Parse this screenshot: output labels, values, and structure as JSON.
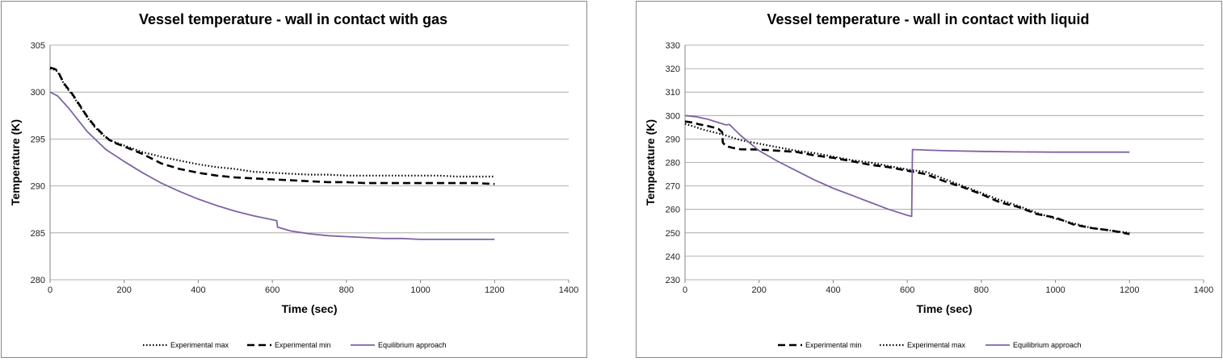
{
  "chart_data": [
    {
      "type": "line",
      "title": "Vessel temperature - wall in contact with gas",
      "xlabel": "Time (sec)",
      "ylabel": "Temperature (K)",
      "xlim": [
        0,
        1400
      ],
      "ylim": [
        280,
        305
      ],
      "xticks": [
        0,
        200,
        400,
        600,
        800,
        1000,
        1200,
        1400
      ],
      "yticks": [
        280,
        285,
        290,
        295,
        300,
        305
      ],
      "grid": "horizontal",
      "legend_position": "bottom",
      "series": [
        {
          "name": "Experimental max",
          "style": "dotted",
          "color": "#000000",
          "x": [
            0,
            10,
            20,
            30,
            40,
            50,
            60,
            80,
            100,
            120,
            140,
            160,
            180,
            200,
            250,
            300,
            350,
            400,
            450,
            500,
            550,
            600,
            650,
            700,
            750,
            800,
            850,
            900,
            950,
            1000,
            1050,
            1100,
            1150,
            1200
          ],
          "y": [
            302.5,
            302.4,
            302.2,
            301.4,
            300.7,
            300.2,
            299.7,
            298.5,
            297.3,
            296.3,
            295.5,
            294.9,
            294.6,
            294.3,
            293.6,
            293.1,
            292.7,
            292.3,
            292.0,
            291.8,
            291.5,
            291.4,
            291.3,
            291.2,
            291.2,
            291.1,
            291.1,
            291.1,
            291.1,
            291.1,
            291.1,
            291.0,
            291.0,
            291.0
          ]
        },
        {
          "name": "Experimental min",
          "style": "dashed",
          "color": "#000000",
          "x": [
            0,
            10,
            20,
            30,
            40,
            50,
            60,
            80,
            100,
            120,
            140,
            160,
            180,
            200,
            250,
            300,
            350,
            400,
            450,
            500,
            550,
            600,
            650,
            700,
            750,
            800,
            850,
            900,
            950,
            1000,
            1050,
            1100,
            1150,
            1200
          ],
          "y": [
            302.6,
            302.5,
            302.3,
            301.5,
            300.8,
            300.3,
            299.8,
            298.6,
            297.4,
            296.4,
            295.6,
            294.9,
            294.5,
            294.2,
            293.4,
            292.4,
            291.8,
            291.4,
            291.1,
            290.9,
            290.8,
            290.7,
            290.6,
            290.5,
            290.4,
            290.4,
            290.3,
            290.3,
            290.3,
            290.3,
            290.3,
            290.3,
            290.3,
            290.2
          ]
        },
        {
          "name": "Equilibrium approach",
          "style": "solid",
          "color": "#7f63a3",
          "x": [
            0,
            20,
            50,
            100,
            150,
            200,
            250,
            300,
            350,
            400,
            450,
            500,
            550,
            600,
            612,
            614,
            650,
            700,
            750,
            800,
            850,
            900,
            950,
            1000,
            1050,
            1100,
            1150,
            1200
          ],
          "y": [
            300.0,
            299.6,
            298.3,
            295.8,
            293.9,
            292.6,
            291.4,
            290.3,
            289.4,
            288.6,
            287.9,
            287.3,
            286.8,
            286.4,
            286.3,
            285.6,
            285.2,
            284.9,
            284.7,
            284.6,
            284.5,
            284.4,
            284.4,
            284.3,
            284.3,
            284.3,
            284.3,
            284.3
          ]
        }
      ]
    },
    {
      "type": "line",
      "title": "Vessel temperature - wall in contact with liquid",
      "xlabel": "Time (sec)",
      "ylabel": "Temperature (K)",
      "xlim": [
        0,
        1400
      ],
      "ylim": [
        230,
        330
      ],
      "xticks": [
        0,
        200,
        400,
        600,
        800,
        1000,
        1200,
        1400
      ],
      "yticks": [
        230,
        240,
        250,
        260,
        270,
        280,
        290,
        300,
        310,
        320,
        330
      ],
      "grid": "horizontal",
      "legend_position": "bottom",
      "series": [
        {
          "name": "Experimental min",
          "style": "dashed",
          "color": "#000000",
          "x": [
            0,
            20,
            40,
            60,
            80,
            90,
            100,
            102,
            110,
            130,
            150,
            200,
            250,
            300,
            350,
            400,
            450,
            500,
            550,
            600,
            650,
            700,
            750,
            800,
            850,
            900,
            950,
            1000,
            1050,
            1100,
            1150,
            1200
          ],
          "y": [
            297.5,
            297.0,
            296.2,
            295.6,
            294.8,
            294.3,
            293.0,
            288.5,
            287.0,
            286.2,
            285.6,
            285.5,
            285.0,
            284.5,
            283.0,
            282.0,
            280.5,
            279.0,
            278.0,
            276.5,
            275.0,
            272.0,
            269.5,
            266.5,
            263.0,
            261.0,
            258.0,
            256.5,
            253.5,
            252.0,
            251.0,
            249.5
          ]
        },
        {
          "name": "Experimental max",
          "style": "dotted",
          "color": "#000000",
          "x": [
            0,
            50,
            100,
            150,
            200,
            250,
            300,
            350,
            400,
            450,
            500,
            550,
            600,
            650,
            700,
            750,
            800,
            850,
            900,
            950,
            1000,
            1050,
            1100,
            1150,
            1200
          ],
          "y": [
            296.5,
            294.0,
            292.0,
            289.5,
            288.0,
            286.5,
            285.0,
            284.0,
            282.5,
            281.0,
            280.0,
            278.5,
            277.0,
            276.0,
            273.0,
            270.0,
            267.0,
            264.0,
            261.5,
            258.5,
            256.0,
            254.0,
            252.0,
            251.0,
            250.0
          ]
        },
        {
          "name": "Equilibrium approach",
          "style": "solid",
          "color": "#7f63a3",
          "x": [
            0,
            30,
            60,
            90,
            110,
            120,
            150,
            200,
            250,
            300,
            350,
            400,
            450,
            500,
            550,
            600,
            612,
            614,
            650,
            700,
            800,
            900,
            1000,
            1100,
            1200
          ],
          "y": [
            300.0,
            299.5,
            298.5,
            297.0,
            296.0,
            296.2,
            291.5,
            285.0,
            280.5,
            276.5,
            272.5,
            269.0,
            266.0,
            263.0,
            260.0,
            257.5,
            257.0,
            285.5,
            285.3,
            285.0,
            284.7,
            284.5,
            284.4,
            284.4,
            284.4
          ]
        }
      ]
    }
  ]
}
